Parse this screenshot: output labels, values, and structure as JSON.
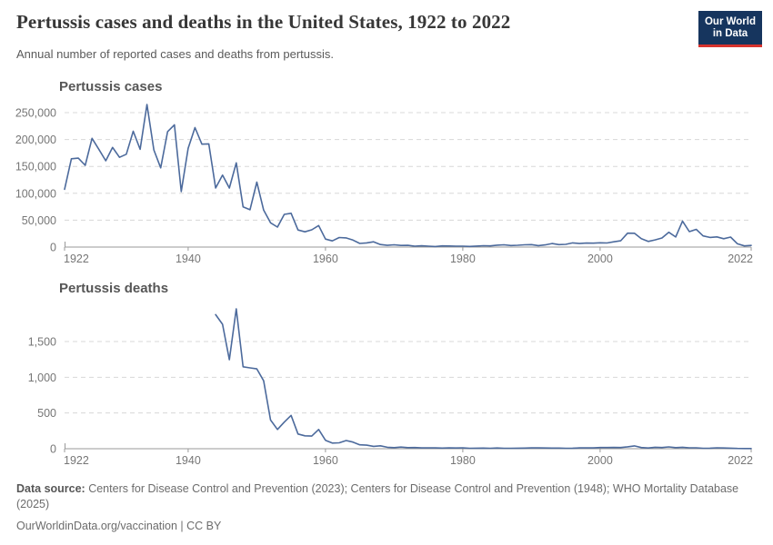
{
  "header": {
    "title": "Pertussis cases and deaths in the United States, 1922 to 2022",
    "subtitle": "Annual number of reported cases and deaths from pertussis.",
    "logo": {
      "line1": "Our World",
      "line2": "in Data",
      "bg_color": "#16355e",
      "accent_color": "#d7332e"
    }
  },
  "colors": {
    "line": "#4c6a9c",
    "grid": "#d8d8d8",
    "axis": "#999999",
    "tick_label": "#767676",
    "chart_title": "#565656"
  },
  "chart_data": [
    {
      "type": "line",
      "title": "Pertussis cases",
      "x_domain": [
        1922,
        2022
      ],
      "xticks": [
        1922,
        1940,
        1960,
        1980,
        2000,
        2022
      ],
      "ylim": [
        0,
        250000
      ],
      "yticks": [
        0,
        50000,
        100000,
        150000,
        200000,
        250000
      ],
      "ytick_labels": [
        "0",
        "50,000",
        "100,000",
        "150,000",
        "200,000",
        "250,000"
      ],
      "grid": true,
      "legend": "none",
      "series": [
        {
          "name": "Pertussis cases",
          "start_year": 1922,
          "values": [
            107473,
            164191,
            165418,
            152003,
            202210,
            181411,
            160417,
            185243,
            166914,
            172559,
            215343,
            181714,
            265269,
            180518,
            147237,
            214652,
            227319,
            103188,
            183866,
            222202,
            191383,
            191890,
            109873,
            133792,
            109860,
            156517,
            74715,
            69479,
            120718,
            68687,
            45030,
            37129,
            60886,
            62786,
            31732,
            28295,
            32148,
            40005,
            14809,
            11468,
            17749,
            17135,
            13005,
            6799,
            7717,
            9718,
            4810,
            3285,
            4249,
            3036,
            3287,
            1759,
            2402,
            1738,
            1010,
            2177,
            2063,
            1623,
            1730,
            1248,
            1895,
            2463,
            2276,
            3589,
            4195,
            2823,
            3450,
            4157,
            4570,
            2719,
            4083,
            6586,
            4617,
            5137,
            7796,
            6564,
            7405,
            7298,
            7867,
            7580,
            9771,
            11647,
            25827,
            25616,
            15632,
            10454,
            13278,
            16858,
            27550,
            18719,
            48277,
            28639,
            32971,
            20762,
            17972,
            18975,
            15609,
            18617,
            6124,
            2116,
            3044
          ]
        }
      ]
    },
    {
      "type": "line",
      "title": "Pertussis deaths",
      "x_domain": [
        1922,
        2022
      ],
      "xticks": [
        1922,
        1940,
        1960,
        1980,
        2000,
        2022
      ],
      "ylim": [
        0,
        1500
      ],
      "yticks": [
        0,
        500,
        1000,
        1500
      ],
      "ytick_labels": [
        "0",
        "500",
        "1,000",
        "1,500"
      ],
      "grid": true,
      "legend": "none",
      "series": [
        {
          "name": "Pertussis deaths",
          "start_year": 1944,
          "values": [
            1876,
            1741,
            1246,
            1958,
            1146,
            1131,
            1118,
            951,
            402,
            270,
            373,
            467,
            206,
            181,
            177,
            269,
            118,
            79,
            83,
            115,
            93,
            55,
            49,
            33,
            41,
            20,
            15,
            23,
            15,
            16,
            12,
            11,
            11,
            9,
            12,
            10,
            11,
            6,
            7,
            9,
            6,
            10,
            6,
            6,
            8,
            9,
            12,
            12,
            10,
            9,
            9,
            6,
            8,
            11,
            13,
            12,
            17,
            17,
            18,
            16,
            27,
            39,
            16,
            10,
            20,
            17,
            26,
            15,
            20,
            13,
            13,
            6,
            8,
            13,
            10,
            7,
            4,
            2,
            3
          ]
        }
      ]
    }
  ],
  "footer": {
    "source_label": "Data source:",
    "source_text": " Centers for Disease Control and Prevention (2023); Centers for Disease Control and Prevention (1948); WHO Mortality Database (2025)",
    "attribution": "OurWorldinData.org/vaccination | CC BY"
  }
}
